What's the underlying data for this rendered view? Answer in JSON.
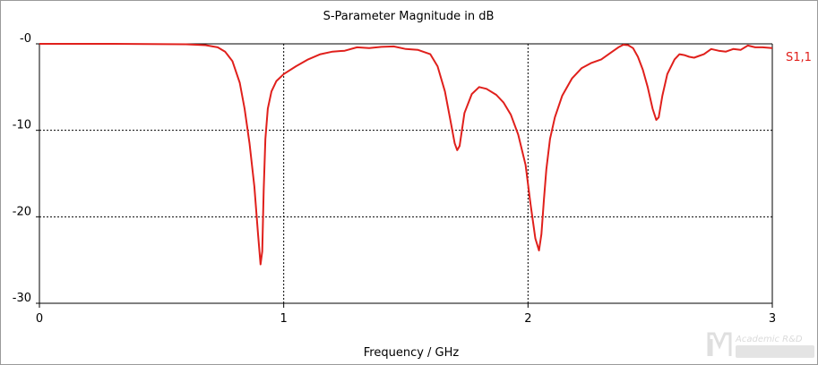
{
  "chart_data": {
    "type": "line",
    "title": "S-Parameter Magnitude in dB",
    "xlabel": "Frequency / GHz",
    "ylabel": "",
    "xlim": [
      0,
      3
    ],
    "ylim": [
      -30,
      0
    ],
    "xticks": [
      {
        "value": 0,
        "label": "0"
      },
      {
        "value": 1,
        "label": "1"
      },
      {
        "value": 2,
        "label": "2"
      },
      {
        "value": 3,
        "label": "3"
      }
    ],
    "yticks": [
      {
        "value": 0,
        "label": "-0"
      },
      {
        "value": -10,
        "label": "-10"
      },
      {
        "value": -20,
        "label": "-20"
      },
      {
        "value": -30,
        "label": "-30"
      }
    ],
    "grid": "dashed",
    "legend_position": "right",
    "series": [
      {
        "name": "S1,1",
        "color": "#e0201c",
        "x": [
          0,
          0.3,
          0.6,
          0.68,
          0.73,
          0.76,
          0.79,
          0.82,
          0.84,
          0.86,
          0.88,
          0.895,
          0.905,
          0.912,
          0.918,
          0.925,
          0.935,
          0.95,
          0.97,
          1.0,
          1.05,
          1.1,
          1.15,
          1.2,
          1.25,
          1.3,
          1.35,
          1.4,
          1.45,
          1.5,
          1.55,
          1.6,
          1.63,
          1.66,
          1.68,
          1.7,
          1.71,
          1.72,
          1.74,
          1.77,
          1.8,
          1.83,
          1.87,
          1.9,
          1.93,
          1.96,
          1.99,
          2.01,
          2.03,
          2.045,
          2.055,
          2.065,
          2.075,
          2.09,
          2.11,
          2.14,
          2.18,
          2.22,
          2.26,
          2.3,
          2.34,
          2.37,
          2.39,
          2.41,
          2.43,
          2.45,
          2.47,
          2.49,
          2.51,
          2.525,
          2.535,
          2.55,
          2.57,
          2.6,
          2.62,
          2.64,
          2.66,
          2.68,
          2.7,
          2.72,
          2.75,
          2.78,
          2.81,
          2.84,
          2.87,
          2.9,
          2.93,
          2.96,
          3.0
        ],
        "values": [
          0,
          0,
          -0.05,
          -0.15,
          -0.4,
          -0.9,
          -2.0,
          -4.5,
          -7.5,
          -11.5,
          -16.5,
          -22.0,
          -25.5,
          -24.0,
          -17.0,
          -11.0,
          -7.5,
          -5.5,
          -4.3,
          -3.5,
          -2.6,
          -1.8,
          -1.2,
          -0.9,
          -0.8,
          -0.4,
          -0.5,
          -0.35,
          -0.3,
          -0.6,
          -0.7,
          -1.2,
          -2.6,
          -5.5,
          -8.5,
          -11.5,
          -12.3,
          -11.8,
          -8.0,
          -5.8,
          -5.0,
          -5.2,
          -5.9,
          -6.8,
          -8.2,
          -10.5,
          -14.0,
          -18.5,
          -22.5,
          -23.9,
          -22.0,
          -18.0,
          -14.5,
          -11.0,
          -8.5,
          -6.0,
          -4.0,
          -2.8,
          -2.2,
          -1.8,
          -1.0,
          -0.4,
          -0.1,
          -0.15,
          -0.5,
          -1.5,
          -3.0,
          -5.0,
          -7.5,
          -8.8,
          -8.5,
          -6.0,
          -3.5,
          -1.8,
          -1.2,
          -1.3,
          -1.5,
          -1.6,
          -1.4,
          -1.2,
          -0.6,
          -0.8,
          -0.9,
          -0.6,
          -0.7,
          -0.2,
          -0.4,
          -0.4,
          -0.5
        ]
      }
    ]
  },
  "watermark": {
    "text": "Academic R&D"
  }
}
